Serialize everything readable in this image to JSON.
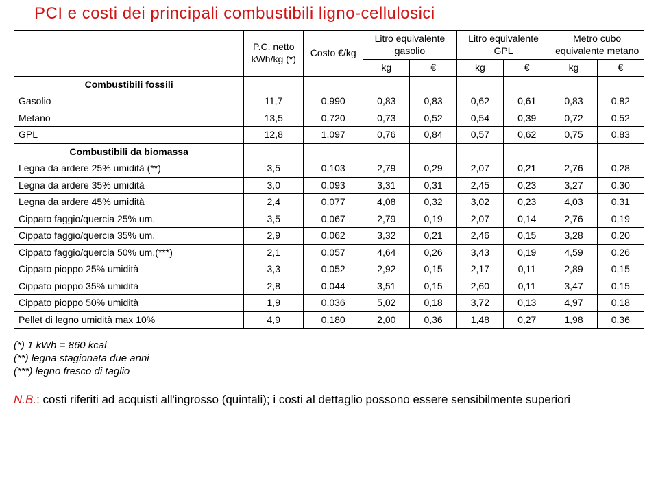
{
  "title": "PCI e costi dei principali combustibili ligno-cellulosici",
  "header": {
    "label_col": "",
    "pci": "P.C. netto kWh/kg (*)",
    "costo": "Costo €/kg",
    "gasolio": "Litro equivalente gasolio",
    "gpl": "Litro equivalente GPL",
    "metano": "Metro cubo equivalente metano",
    "sub_kg": "kg",
    "sub_eur": "€"
  },
  "sections": [
    {
      "title": "Combustibili fossili",
      "rows": [
        {
          "label": "Gasolio",
          "pci": "11,7",
          "costo": "0,990",
          "g_kg": "0,83",
          "g_eur": "0,83",
          "p_kg": "0,62",
          "p_eur": "0,61",
          "m_kg": "0,83",
          "m_eur": "0,82"
        },
        {
          "label": "Metano",
          "pci": "13,5",
          "costo": "0,720",
          "g_kg": "0,73",
          "g_eur": "0,52",
          "p_kg": "0,54",
          "p_eur": "0,39",
          "m_kg": "0,72",
          "m_eur": "0,52"
        },
        {
          "label": "GPL",
          "pci": "12,8",
          "costo": "1,097",
          "g_kg": "0,76",
          "g_eur": "0,84",
          "p_kg": "0,57",
          "p_eur": "0,62",
          "m_kg": "0,75",
          "m_eur": "0,83"
        }
      ]
    },
    {
      "title": "Combustibili da biomassa",
      "rows": [
        {
          "label": "Legna da ardere 25% umidità (**)",
          "pci": "3,5",
          "costo": "0,103",
          "g_kg": "2,79",
          "g_eur": "0,29",
          "p_kg": "2,07",
          "p_eur": "0,21",
          "m_kg": "2,76",
          "m_eur": "0,28"
        },
        {
          "label": "Legna da ardere 35% umidità",
          "pci": "3,0",
          "costo": "0,093",
          "g_kg": "3,31",
          "g_eur": "0,31",
          "p_kg": "2,45",
          "p_eur": "0,23",
          "m_kg": "3,27",
          "m_eur": "0,30"
        },
        {
          "label": "Legna da ardere 45% umidità",
          "pci": "2,4",
          "costo": "0,077",
          "g_kg": "4,08",
          "g_eur": "0,32",
          "p_kg": "3,02",
          "p_eur": "0,23",
          "m_kg": "4,03",
          "m_eur": "0,31"
        },
        {
          "label": "Cippato faggio/quercia 25% um.",
          "pci": "3,5",
          "costo": "0,067",
          "g_kg": "2,79",
          "g_eur": "0,19",
          "p_kg": "2,07",
          "p_eur": "0,14",
          "m_kg": "2,76",
          "m_eur": "0,19"
        },
        {
          "label": "Cippato faggio/quercia 35% um.",
          "pci": "2,9",
          "costo": "0,062",
          "g_kg": "3,32",
          "g_eur": "0,21",
          "p_kg": "2,46",
          "p_eur": "0,15",
          "m_kg": "3,28",
          "m_eur": "0,20"
        },
        {
          "label": "Cippato faggio/quercia 50% um.(***)",
          "pci": "2,1",
          "costo": "0,057",
          "g_kg": "4,64",
          "g_eur": "0,26",
          "p_kg": "3,43",
          "p_eur": "0,19",
          "m_kg": "4,59",
          "m_eur": "0,26"
        },
        {
          "label": "Cippato pioppo 25% umidità",
          "pci": "3,3",
          "costo": "0,052",
          "g_kg": "2,92",
          "g_eur": "0,15",
          "p_kg": "2,17",
          "p_eur": "0,11",
          "m_kg": "2,89",
          "m_eur": "0,15"
        },
        {
          "label": "Cippato pioppo 35% umidità",
          "pci": "2,8",
          "costo": "0,044",
          "g_kg": "3,51",
          "g_eur": "0,15",
          "p_kg": "2,60",
          "p_eur": "0,11",
          "m_kg": "3,47",
          "m_eur": "0,15"
        },
        {
          "label": "Cippato pioppo 50% umidità",
          "pci": "1,9",
          "costo": "0,036",
          "g_kg": "5,02",
          "g_eur": "0,18",
          "p_kg": "3,72",
          "p_eur": "0,13",
          "m_kg": "4,97",
          "m_eur": "0,18"
        },
        {
          "label": "Pellet di legno umidità max 10%",
          "pci": "4,9",
          "costo": "0,180",
          "g_kg": "2,00",
          "g_eur": "0,36",
          "p_kg": "1,48",
          "p_eur": "0,27",
          "m_kg": "1,98",
          "m_eur": "0,36"
        }
      ]
    }
  ],
  "footnotes": [
    "(*) 1 kWh = 860 kcal",
    "(**) legna stagionata due anni",
    "(***) legno fresco di taglio"
  ],
  "nb": {
    "lead": "N.B.",
    "text": ": costi riferiti ad acquisti all'ingrosso (quintali); i costi al dettaglio possono essere sensibilmente superiori"
  }
}
